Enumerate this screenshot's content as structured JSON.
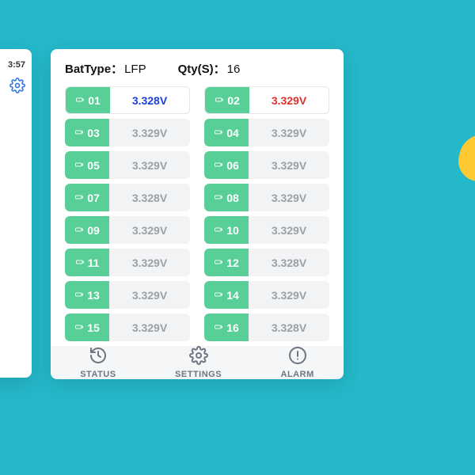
{
  "background_color": "#24b8c9",
  "accent_yellow": "#ffc933",
  "left_panel": {
    "time": "3:57",
    "icon": "gear-icon",
    "icon_color": "#3b7be0"
  },
  "header": {
    "battype_label": "BatType：",
    "battype_value": "LFP",
    "qty_label": "Qty(S)：",
    "qty_value": "16"
  },
  "cell_badge_color": "#57cf96",
  "cell_muted_bg": "#f2f3f5",
  "volt_colors": {
    "default": "#9aa0a8",
    "min": "#1b3fe0",
    "max": "#e1302a"
  },
  "cells": [
    {
      "id": "01",
      "voltage": "3.328V",
      "state": "min"
    },
    {
      "id": "02",
      "voltage": "3.329V",
      "state": "max"
    },
    {
      "id": "03",
      "voltage": "3.329V",
      "state": "normal"
    },
    {
      "id": "04",
      "voltage": "3.329V",
      "state": "normal"
    },
    {
      "id": "05",
      "voltage": "3.329V",
      "state": "normal"
    },
    {
      "id": "06",
      "voltage": "3.329V",
      "state": "normal"
    },
    {
      "id": "07",
      "voltage": "3.328V",
      "state": "normal"
    },
    {
      "id": "08",
      "voltage": "3.329V",
      "state": "normal"
    },
    {
      "id": "09",
      "voltage": "3.329V",
      "state": "normal"
    },
    {
      "id": "10",
      "voltage": "3.329V",
      "state": "normal"
    },
    {
      "id": "11",
      "voltage": "3.329V",
      "state": "normal"
    },
    {
      "id": "12",
      "voltage": "3.328V",
      "state": "normal"
    },
    {
      "id": "13",
      "voltage": "3.329V",
      "state": "normal"
    },
    {
      "id": "14",
      "voltage": "3.329V",
      "state": "normal"
    },
    {
      "id": "15",
      "voltage": "3.329V",
      "state": "normal"
    },
    {
      "id": "16",
      "voltage": "3.328V",
      "state": "normal"
    }
  ],
  "nav": {
    "status": "STATUS",
    "settings": "SETTINGS",
    "alarm": "ALARM"
  }
}
